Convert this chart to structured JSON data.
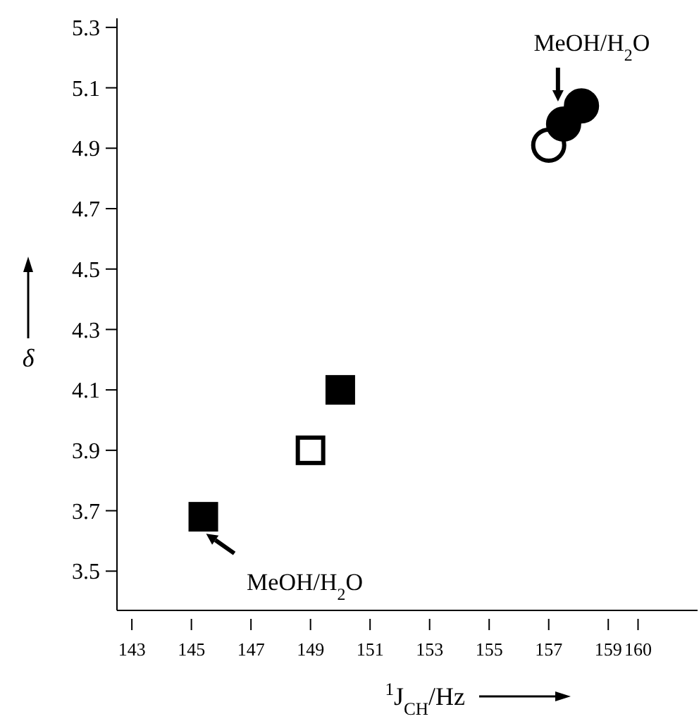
{
  "chart_data": {
    "type": "scatter",
    "xlabel": "$^{1}$J$_{CH}$/Hz",
    "ylabel": "δ",
    "xlim": [
      142.5,
      162
    ],
    "ylim": [
      3.37,
      5.33
    ],
    "xticks": [
      143,
      145,
      147,
      149,
      151,
      153,
      155,
      157,
      159,
      160
    ],
    "yticks": [
      3.5,
      3.7,
      3.9,
      4.1,
      4.3,
      4.5,
      4.7,
      4.9,
      5.1,
      5.3
    ],
    "grid": false,
    "series": [
      {
        "color": "#000000",
        "marker": "square",
        "x": [
          145.4,
          150.0
        ],
        "values": [
          3.68,
          4.1
        ]
      },
      {
        "color": "#ffffff",
        "marker": "square",
        "x": [
          149.0
        ],
        "values": [
          3.9
        ]
      },
      {
        "color": "#ffffff",
        "marker": "circle",
        "x": [
          157.0
        ],
        "values": [
          4.91
        ]
      },
      {
        "color": "#000000",
        "marker": "circle",
        "x": [
          157.5,
          158.1
        ],
        "values": [
          4.98,
          5.04
        ]
      }
    ],
    "annotations": [
      {
        "text": "MeOH/H$_{2}$O",
        "x": 157.5,
        "y": 4.98
      },
      {
        "text": "MeOH/H$_{2}$O",
        "x": 145.4,
        "y": 3.68
      }
    ]
  }
}
